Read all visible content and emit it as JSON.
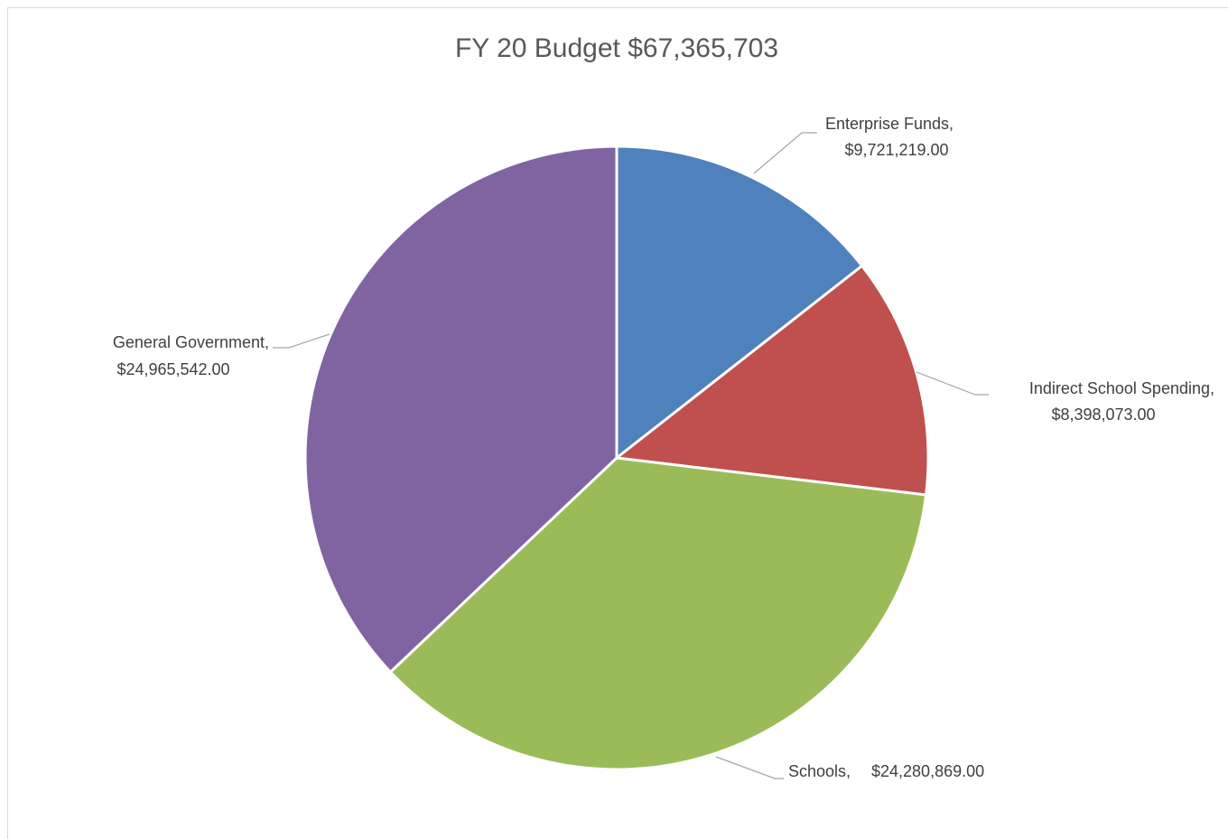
{
  "chart_data": {
    "type": "pie",
    "title": "FY 20 Budget $67,365,703",
    "categories": [
      "Enterprise Funds,",
      "Indirect School Spending,",
      "Schools,",
      "General Government,"
    ],
    "values": [
      9721219,
      8398073,
      24280869,
      24965542
    ],
    "value_labels": [
      "$9,721,219.00",
      "$8,398,073.00",
      "$24,280,869.00",
      "$24,965,542.00"
    ],
    "colors": [
      "#4f81bd",
      "#c0504d",
      "#9bbb59",
      "#8064a2"
    ]
  }
}
